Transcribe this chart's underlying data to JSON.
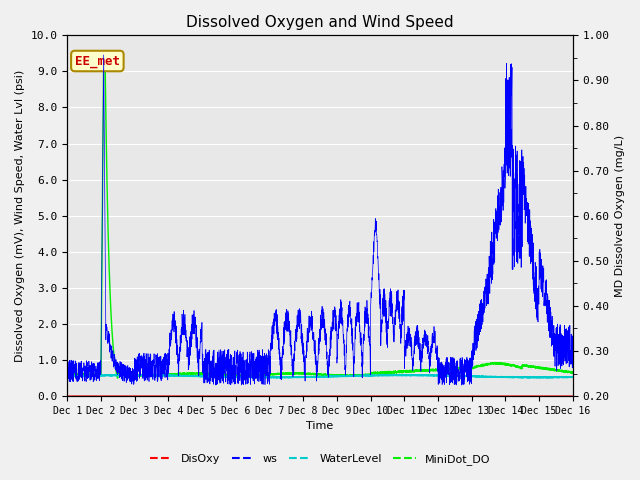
{
  "title": "Dissolved Oxygen and Wind Speed",
  "ylabel_left": "Dissolved Oxygen (mV), Wind Speed, Water Lvl (psi)",
  "ylabel_right": "MD Dissolved Oxygen (mg/L)",
  "xlabel": "Time",
  "annotation": "EE_met",
  "ylim_left": [
    0.0,
    10.0
  ],
  "ylim_right": [
    0.2,
    1.0
  ],
  "yticks_left": [
    0.0,
    1.0,
    2.0,
    3.0,
    4.0,
    5.0,
    6.0,
    7.0,
    8.0,
    9.0,
    10.0
  ],
  "yticks_right_labeled": [
    0.2,
    0.3,
    0.4,
    0.5,
    0.6,
    0.7,
    0.8,
    0.9,
    1.0
  ],
  "yticks_right_minor": [
    0.25,
    0.35,
    0.45,
    0.55,
    0.65,
    0.75,
    0.85,
    0.95
  ],
  "xtick_labels": [
    "Dec 1",
    "Dec 2",
    "Dec 3",
    "Dec 4",
    "Dec 5",
    "Dec 6",
    "Dec 7",
    "Dec 8",
    "Dec 9",
    "Dec 10",
    "Dec 11",
    "Dec 12",
    "Dec 13",
    "Dec 14",
    "Dec 15",
    "Dec 16"
  ],
  "n_days": 15,
  "n_points": 3000,
  "colors": {
    "DisOxy": "#ff0000",
    "ws": "#0000ff",
    "WaterLevel": "#00cccc",
    "MiniDot_DO": "#00ee00"
  },
  "background_color": "#e8e8e8",
  "grid_color": "#ffffff",
  "fig_facecolor": "#f0f0f0",
  "title_fontsize": 11,
  "label_fontsize": 8,
  "tick_fontsize": 8,
  "legend_fontsize": 8,
  "annotation_fontsize": 9
}
